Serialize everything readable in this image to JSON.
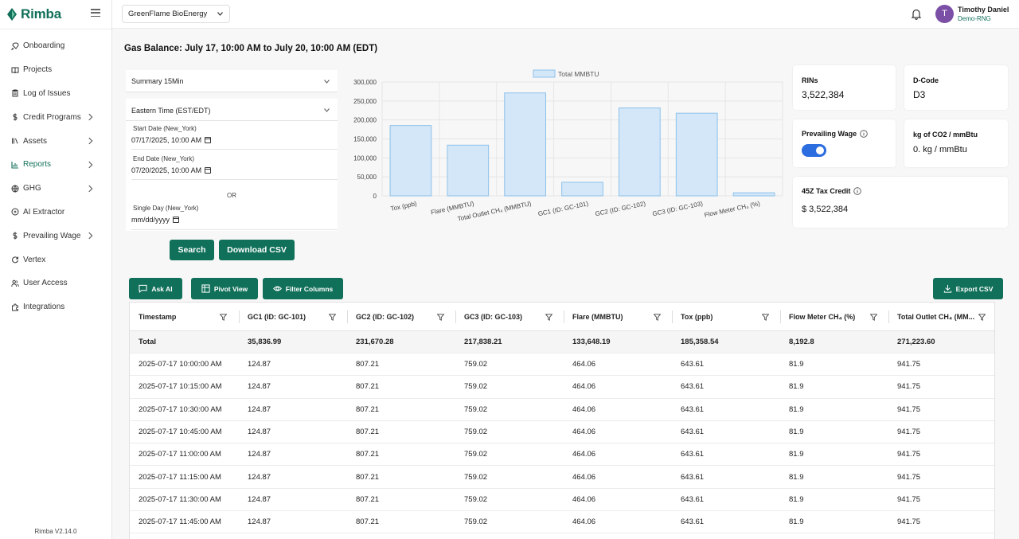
{
  "app": {
    "name": "Rimba",
    "version": "Rimba V2.14.0"
  },
  "sidebar": {
    "items": [
      {
        "label": "Onboarding",
        "icon": "rocket-icon",
        "chevron": false
      },
      {
        "label": "Projects",
        "icon": "book-icon",
        "chevron": false
      },
      {
        "label": "Log of Issues",
        "icon": "clipboard-icon",
        "chevron": false
      },
      {
        "label": "Credit Programs",
        "icon": "dollar-icon",
        "chevron": true
      },
      {
        "label": "Assets",
        "icon": "library-icon",
        "chevron": true
      },
      {
        "label": "Reports",
        "icon": "bar-chart-icon",
        "chevron": true,
        "active": true
      },
      {
        "label": "GHG",
        "icon": "globe-icon",
        "chevron": true
      },
      {
        "label": "AI Extractor",
        "icon": "ai-icon",
        "chevron": false
      },
      {
        "label": "Prevailing Wage",
        "icon": "dollar-icon",
        "chevron": true
      },
      {
        "label": "Vertex",
        "icon": "refresh-icon",
        "chevron": false
      },
      {
        "label": "User Access",
        "icon": "users-icon",
        "chevron": false
      },
      {
        "label": "Integrations",
        "icon": "puzzle-icon",
        "chevron": false
      }
    ]
  },
  "header": {
    "org": "GreenFlame BioEnergy",
    "user": {
      "name": "Timothy Daniel",
      "org": "Demo-RNG",
      "initial": "T"
    }
  },
  "page": {
    "title": "Gas Balance: July 17, 10:00 AM to July 20, 10:00 AM (EDT)"
  },
  "filters": {
    "summary": "Summary 15Min",
    "timezone": "Eastern Time (EST/EDT)",
    "start_label": "Start Date (New_York)",
    "start_value": "07/17/2025, 10:00 AM",
    "end_label": "End Date (New_York)",
    "end_value": "07/20/2025, 10:00 AM",
    "or": "OR",
    "single_label": "Single Day (New_York)",
    "single_placeholder": "mm/dd/yyyy",
    "search": "Search",
    "download": "Download CSV"
  },
  "chart_data": {
    "type": "bar",
    "categories": [
      "Tox (ppb)",
      "Flare (MMBTU)",
      "Total Outlet CH₄ (MMBTU)",
      "GC1 (ID: GC-101)",
      "GC2 (ID: GC-102)",
      "GC3 (ID: GC-103)",
      "Flow Meter CH₄ (%)"
    ],
    "series": [
      {
        "name": "Total MMBTU",
        "values": [
          185358.54,
          133648.19,
          271223.6,
          35836.99,
          231670.28,
          217838.21,
          8192.8
        ]
      }
    ],
    "yticks": [
      "0",
      "50,000",
      "100,000",
      "150,000",
      "200,000",
      "250,000",
      "300,000"
    ],
    "ylim": [
      0,
      300000
    ],
    "legend": "top",
    "grid": true,
    "colors": {
      "fill": "#d3e7f8",
      "stroke": "#8ec1ea"
    }
  },
  "cards": {
    "rins": {
      "title": "RINs",
      "value": "3,522,384"
    },
    "dcode": {
      "title": "D-Code",
      "value": "D3"
    },
    "wage": {
      "title": "Prevailing Wage",
      "on": true
    },
    "co2": {
      "title": "kg of CO2 / mmBtu",
      "value": "0. kg / mmBtu"
    },
    "tax": {
      "title": "45Z Tax Credit",
      "value": "$ 3,522,384"
    }
  },
  "toolbar": {
    "ask_ai": "Ask AI",
    "pivot": "Pivot View",
    "filter": "Filter Columns",
    "export": "Export CSV"
  },
  "table": {
    "columns": [
      "Timestamp",
      "GC1 (ID: GC-101)",
      "GC2 (ID: GC-102)",
      "GC3 (ID: GC-103)",
      "Flare (MMBTU)",
      "Tox (ppb)",
      "Flow Meter CH₄ (%)",
      "Total Outlet CH₄ (MM..."
    ],
    "total": [
      "Total",
      "35,836.99",
      "231,670.28",
      "217,838.21",
      "133,648.19",
      "185,358.54",
      "8,192.8",
      "271,223.60"
    ],
    "rows": [
      [
        "2025-07-17 10:00:00 AM",
        "124.87",
        "807.21",
        "759.02",
        "464.06",
        "643.61",
        "81.9",
        "941.75"
      ],
      [
        "2025-07-17 10:15:00 AM",
        "124.87",
        "807.21",
        "759.02",
        "464.06",
        "643.61",
        "81.9",
        "941.75"
      ],
      [
        "2025-07-17 10:30:00 AM",
        "124.87",
        "807.21",
        "759.02",
        "464.06",
        "643.61",
        "81.9",
        "941.75"
      ],
      [
        "2025-07-17 10:45:00 AM",
        "124.87",
        "807.21",
        "759.02",
        "464.06",
        "643.61",
        "81.9",
        "941.75"
      ],
      [
        "2025-07-17 11:00:00 AM",
        "124.87",
        "807.21",
        "759.02",
        "464.06",
        "643.61",
        "81.9",
        "941.75"
      ],
      [
        "2025-07-17 11:15:00 AM",
        "124.87",
        "807.21",
        "759.02",
        "464.06",
        "643.61",
        "81.9",
        "941.75"
      ],
      [
        "2025-07-17 11:30:00 AM",
        "124.87",
        "807.21",
        "759.02",
        "464.06",
        "643.61",
        "81.9",
        "941.75"
      ],
      [
        "2025-07-17 11:45:00 AM",
        "124.87",
        "807.21",
        "759.02",
        "464.06",
        "643.61",
        "81.9",
        "941.75"
      ]
    ]
  },
  "colors": {
    "brand": "#11705a",
    "toggle": "#2c6de0",
    "avatar": "#7b4fa6"
  }
}
